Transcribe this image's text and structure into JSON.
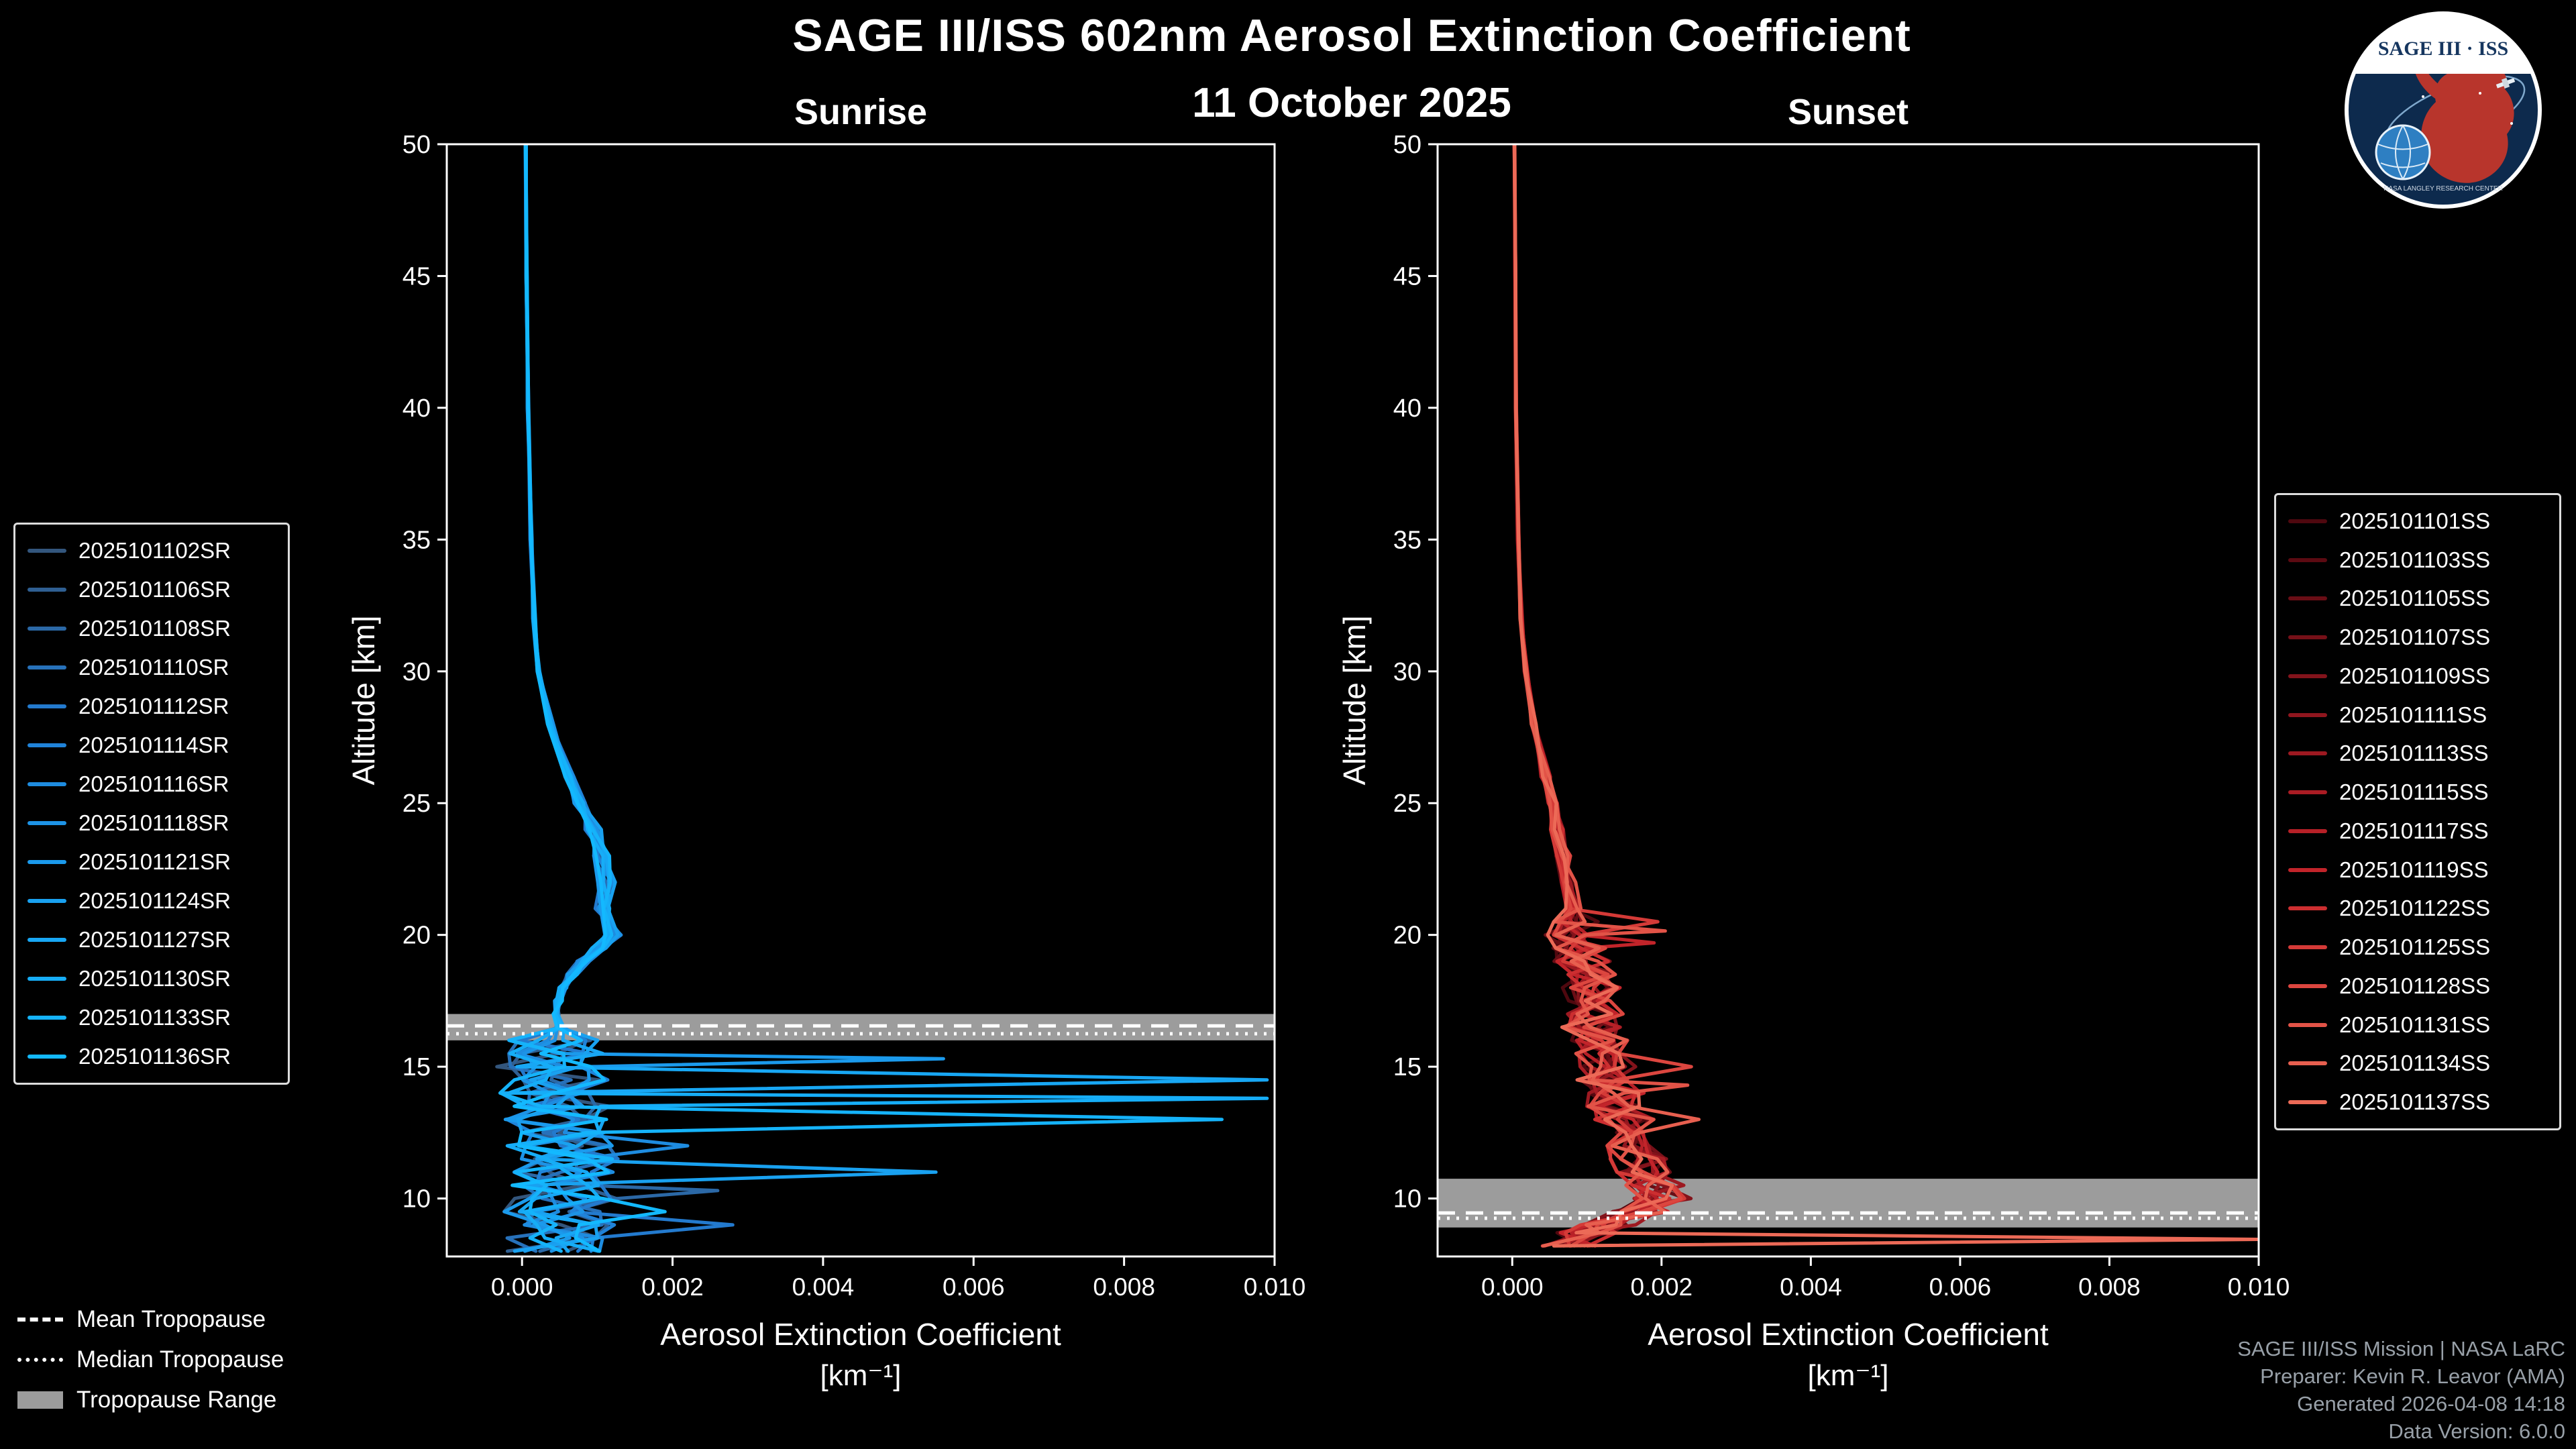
{
  "header": {
    "title": "SAGE III/ISS 602nm Aerosol Extinction Coefficient",
    "date": "11 October 2025"
  },
  "logo": {
    "title": "SAGE III · ISS",
    "org_text": "NASA LANGLEY RESEARCH CENTER"
  },
  "tropopause_legend": {
    "mean": "Mean Tropopause",
    "median": "Median Tropopause",
    "range": "Tropopause Range"
  },
  "footer": {
    "mission": "SAGE III/ISS Mission | NASA LaRC",
    "preparer": "Preparer: Kevin R. Leavor (AMA)",
    "generated": "Generated 2026-04-08 14:18",
    "version": "Data Version: 6.0.0"
  },
  "colors": {
    "background": "#000000",
    "axes": "#ffffff",
    "tropopause_band": "#9c9c9c",
    "tropopause_lines": "#ffffff",
    "sunrise_accent": "#1e9bf0",
    "sunset_accent": "#d7352e"
  },
  "chart_data": [
    {
      "type": "line",
      "title": "Sunrise",
      "xlabel": "Aerosol Extinction Coefficient",
      "xlabel_units": "[km⁻¹]",
      "ylabel": "Altitude [km]",
      "xlim": [
        -0.001,
        0.01
      ],
      "ylim": [
        7.8,
        50
      ],
      "xticks": [
        0,
        0.002,
        0.004,
        0.006,
        0.008,
        0.01
      ],
      "xtick_labels": [
        "0.000",
        "0.002",
        "0.004",
        "0.006",
        "0.008",
        "0.010"
      ],
      "yticks": [
        10,
        15,
        20,
        25,
        30,
        35,
        40,
        45,
        50
      ],
      "grid": false,
      "legend_position": "outside-left",
      "value_scale": 0.001,
      "tropopause": {
        "mean": 16.55,
        "median": 16.25,
        "range": [
          16.0,
          17.0
        ],
        "band_color": "#9c9c9c"
      },
      "base_profile": {
        "alt": [
          50,
          45,
          40,
          35,
          32,
          30,
          28,
          26,
          25,
          24,
          23,
          22,
          21,
          20,
          19.5,
          19,
          18.5,
          18,
          17.5,
          17,
          16.5,
          16,
          15.5,
          15,
          14.5,
          14,
          13.5,
          13,
          12.5,
          12,
          11.5,
          11,
          10.5,
          10,
          9.5,
          9,
          8.5,
          8
        ],
        "val": [
          0.05,
          0.06,
          0.08,
          0.12,
          0.16,
          0.22,
          0.38,
          0.62,
          0.78,
          0.95,
          1.05,
          1.12,
          1.08,
          1.18,
          1.0,
          0.82,
          0.66,
          0.55,
          0.48,
          0.44,
          0.5,
          0.38,
          0.42,
          0.35,
          0.5,
          0.4,
          0.55,
          0.45,
          0.6,
          0.5,
          0.65,
          0.55,
          0.5,
          0.6,
          0.45,
          0.55,
          0.5,
          0.45
        ]
      },
      "jitter": {
        "below_alt": 16.4,
        "amplitude": 0.7,
        "upper_spread": 0.12
      },
      "series": [
        {
          "name": "2025101102SR",
          "color": "#33567d",
          "seed": 3,
          "deviations": []
        },
        {
          "name": "2025101106SR",
          "color": "#2f5f92",
          "seed": 7,
          "deviations": []
        },
        {
          "name": "2025101108SR",
          "color": "#2b68a6",
          "seed": 11,
          "deviations": [
            [
              10.3,
              2.6
            ]
          ]
        },
        {
          "name": "2025101110SR",
          "color": "#2771ba",
          "seed": 19,
          "deviations": []
        },
        {
          "name": "2025101112SR",
          "color": "#237ace",
          "seed": 23,
          "deviations": [
            [
              9.1,
              2.8
            ]
          ]
        },
        {
          "name": "2025101114SR",
          "color": "#2083d9",
          "seed": 31,
          "deviations": []
        },
        {
          "name": "2025101116SR",
          "color": "#1e8ce0",
          "seed": 37,
          "deviations": [
            [
              12.0,
              2.2
            ]
          ]
        },
        {
          "name": "2025101118SR",
          "color": "#1d93e6",
          "seed": 41,
          "deviations": []
        },
        {
          "name": "2025101121SR",
          "color": "#1b9aec",
          "seed": 47,
          "deviations": [
            [
              15.3,
              5.6
            ]
          ]
        },
        {
          "name": "2025101124SR",
          "color": "#19a1f0",
          "seed": 53,
          "deviations": [
            [
              11.05,
              5.5
            ]
          ]
        },
        {
          "name": "2025101127SR",
          "color": "#18a7f4",
          "seed": 61,
          "deviations": [
            [
              14.5,
              9.9
            ]
          ]
        },
        {
          "name": "2025101130SR",
          "color": "#16adf7",
          "seed": 67,
          "deviations": [
            [
              13.8,
              9.9
            ]
          ]
        },
        {
          "name": "2025101133SR",
          "color": "#15b3fa",
          "seed": 71,
          "deviations": [
            [
              12.9,
              9.3
            ]
          ]
        },
        {
          "name": "2025101136SR",
          "color": "#13b9ff",
          "seed": 79,
          "deviations": [
            [
              9.6,
              1.9
            ]
          ]
        }
      ]
    },
    {
      "type": "line",
      "title": "Sunset",
      "xlabel": "Aerosol Extinction Coefficient",
      "xlabel_units": "[km⁻¹]",
      "ylabel": "Altitude [km]",
      "xlim": [
        -0.001,
        0.01
      ],
      "ylim": [
        7.8,
        50
      ],
      "xticks": [
        0,
        0.002,
        0.004,
        0.006,
        0.008,
        0.01
      ],
      "xtick_labels": [
        "0.000",
        "0.002",
        "0.004",
        "0.006",
        "0.008",
        "0.010"
      ],
      "yticks": [
        10,
        15,
        20,
        25,
        30,
        35,
        40,
        45,
        50
      ],
      "grid": false,
      "legend_position": "outside-right",
      "value_scale": 0.001,
      "tropopause": {
        "mean": 9.45,
        "median": 9.25,
        "range": [
          8.9,
          10.75
        ],
        "band_color": "#9c9c9c"
      },
      "base_profile": {
        "alt": [
          50,
          45,
          40,
          35,
          32,
          30,
          28,
          26,
          25,
          24,
          23,
          22,
          21,
          20.5,
          20,
          19.5,
          19,
          18.5,
          18,
          17.5,
          17,
          16.5,
          16,
          15.5,
          15,
          14.5,
          14,
          13.5,
          13,
          12.5,
          12,
          11.5,
          11,
          10.5,
          10,
          9.5,
          9,
          8.7,
          8.2
        ],
        "val": [
          0.03,
          0.04,
          0.05,
          0.08,
          0.12,
          0.18,
          0.3,
          0.45,
          0.55,
          0.6,
          0.68,
          0.75,
          0.8,
          0.85,
          0.8,
          0.9,
          0.95,
          1.0,
          1.05,
          1.0,
          1.1,
          1.05,
          1.15,
          1.2,
          1.3,
          1.25,
          1.4,
          1.35,
          1.5,
          1.45,
          1.6,
          1.7,
          1.8,
          1.9,
          2.0,
          1.7,
          1.3,
          1.0,
          0.8
        ]
      },
      "jitter": {
        "below_alt": 21,
        "amplitude": 0.4,
        "upper_spread": 0.15
      },
      "series": [
        {
          "name": "2025101101SS",
          "color": "#4f080f",
          "seed": 101,
          "deviations": []
        },
        {
          "name": "2025101103SS",
          "color": "#5c0a12",
          "seed": 103,
          "deviations": []
        },
        {
          "name": "2025101105SS",
          "color": "#690d15",
          "seed": 107,
          "deviations": []
        },
        {
          "name": "2025101107SS",
          "color": "#761018",
          "seed": 109,
          "deviations": []
        },
        {
          "name": "2025101109SS",
          "color": "#83131b",
          "seed": 113,
          "deviations": []
        },
        {
          "name": "2025101111SS",
          "color": "#90161e",
          "seed": 127,
          "deviations": []
        },
        {
          "name": "2025101113SS",
          "color": "#9d1921",
          "seed": 131,
          "deviations": []
        },
        {
          "name": "2025101115SS",
          "color": "#aa1c24",
          "seed": 137,
          "deviations": []
        },
        {
          "name": "2025101117SS",
          "color": "#b72027",
          "seed": 139,
          "deviations": []
        },
        {
          "name": "2025101119SS",
          "color": "#c2242a",
          "seed": 149,
          "deviations": [
            [
              19.7,
              1.9
            ]
          ]
        },
        {
          "name": "2025101122SS",
          "color": "#cc2e30",
          "seed": 151,
          "deviations": []
        },
        {
          "name": "2025101125SS",
          "color": "#d43a37",
          "seed": 157,
          "deviations": [
            [
              20.6,
              1.95
            ]
          ]
        },
        {
          "name": "2025101128SS",
          "color": "#dc463f",
          "seed": 163,
          "deviations": [
            [
              15.1,
              2.4
            ]
          ]
        },
        {
          "name": "2025101131SS",
          "color": "#e25347",
          "seed": 167,
          "deviations": [
            [
              20.15,
              2.05
            ],
            [
              14.3,
              2.35
            ]
          ]
        },
        {
          "name": "2025101134SS",
          "color": "#e75f4f",
          "seed": 173,
          "deviations": [
            [
              13.0,
              2.5
            ]
          ]
        },
        {
          "name": "2025101137SS",
          "color": "#ec6a57",
          "seed": 179,
          "deviations": [
            [
              8.45,
              10.0
            ]
          ]
        }
      ]
    }
  ]
}
